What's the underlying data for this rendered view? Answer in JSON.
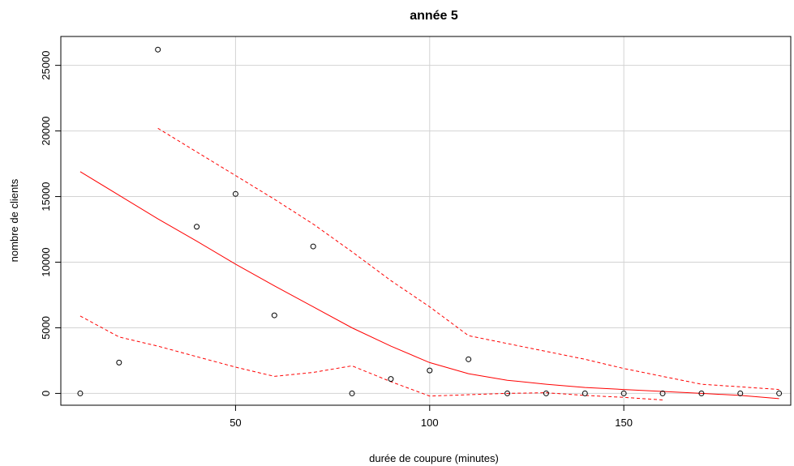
{
  "chart_data": {
    "type": "scatter",
    "title": "année 5",
    "xlabel": "durée de coupure (minutes)",
    "ylabel": "nombre de clients",
    "xlim": [
      5,
      193
    ],
    "ylim": [
      -900,
      27200
    ],
    "x_ticks": [
      50,
      100,
      150
    ],
    "y_ticks": [
      0,
      5000,
      10000,
      15000,
      20000,
      25000
    ],
    "x_tick_labels": [
      "50",
      "100",
      "150"
    ],
    "y_tick_labels": [
      "0",
      "5000",
      "10000",
      "15000",
      "20000",
      "25000"
    ],
    "grid": true,
    "colors": {
      "points": "#000000",
      "fit": "#ff0000",
      "grid": "#d3d3d3",
      "axis": "#000000"
    },
    "series": [
      {
        "kind": "points",
        "x": [
          10,
          20,
          30,
          40,
          50,
          60,
          70,
          80,
          90,
          100,
          110,
          120,
          130,
          140,
          150,
          160,
          170,
          180,
          190
        ],
        "y": [
          0,
          2350,
          26200,
          12700,
          15200,
          5950,
          11200,
          0,
          1100,
          1750,
          2600,
          0,
          0,
          0,
          0,
          0,
          0,
          0,
          0
        ]
      },
      {
        "kind": "fit",
        "style": "solid",
        "x": [
          10,
          20,
          30,
          40,
          50,
          60,
          70,
          80,
          90,
          100,
          110,
          120,
          130,
          140,
          150,
          160,
          170,
          180,
          190
        ],
        "y": [
          16900,
          15100,
          13300,
          11600,
          9850,
          8200,
          6600,
          5000,
          3600,
          2350,
          1500,
          1000,
          700,
          450,
          300,
          150,
          0,
          -150,
          -400
        ]
      },
      {
        "kind": "upper-band",
        "style": "dashed",
        "x": [
          30,
          40,
          50,
          60,
          70,
          80,
          90,
          100,
          110,
          120,
          130,
          140,
          150,
          160,
          170,
          180,
          190
        ],
        "y": [
          20200,
          18400,
          16600,
          14800,
          12900,
          10800,
          8600,
          6600,
          4400,
          3800,
          3200,
          2600,
          1900,
          1300,
          700,
          500,
          300
        ]
      },
      {
        "kind": "lower-band",
        "style": "dashed",
        "x": [
          10,
          20,
          30,
          40,
          50,
          60,
          70,
          80,
          90,
          100,
          110,
          120,
          130,
          140,
          150,
          160
        ],
        "y": [
          5900,
          4300,
          3600,
          2800,
          2000,
          1300,
          1600,
          2100,
          900,
          -200,
          -100,
          0,
          50,
          -150,
          -300,
          -500
        ]
      }
    ]
  }
}
